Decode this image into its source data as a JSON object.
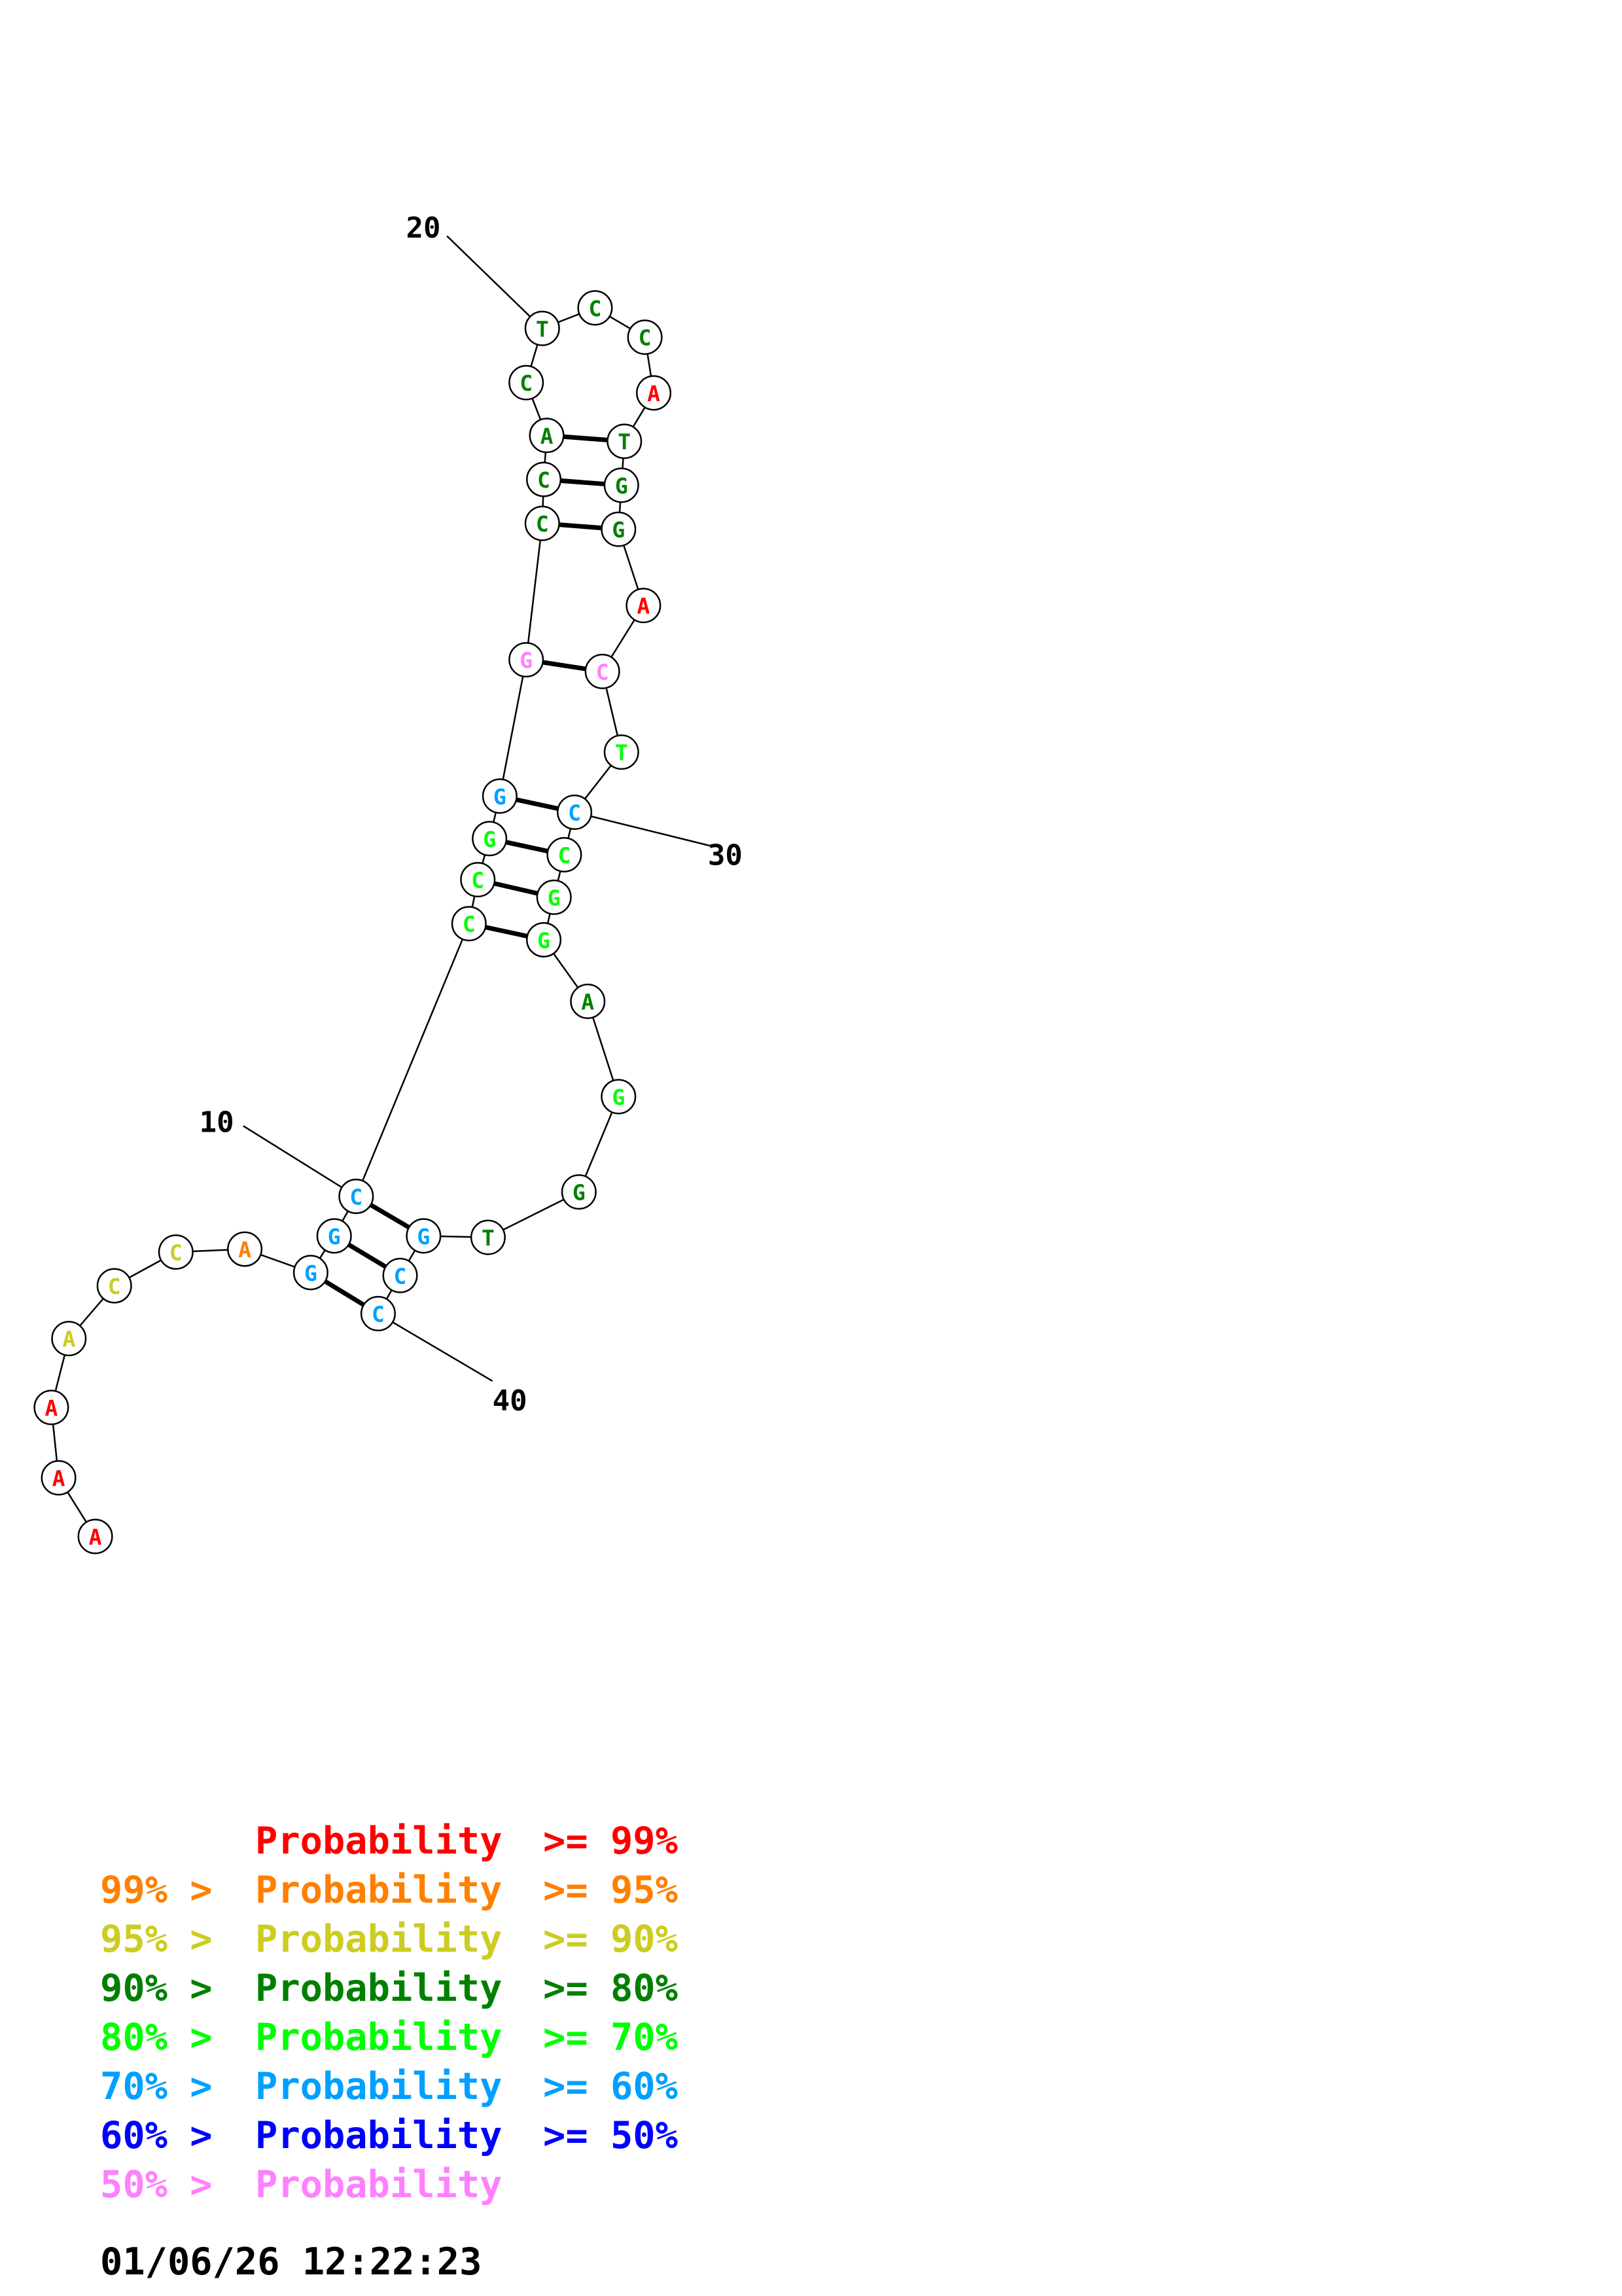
{
  "colors": {
    "red": "#ff0000",
    "orange": "#ff8000",
    "yellow": "#cccc22",
    "darkgreen": "#008000",
    "green": "#00ff00",
    "cyan": "#00a0ff",
    "blue": "#0000ff",
    "pink": "#ff80ff"
  },
  "nucleotides": [
    {
      "i": 1,
      "base": "A",
      "color": "red"
    },
    {
      "i": 2,
      "base": "A",
      "color": "red"
    },
    {
      "i": 3,
      "base": "A",
      "color": "red"
    },
    {
      "i": 4,
      "base": "A",
      "color": "yellow"
    },
    {
      "i": 5,
      "base": "C",
      "color": "yellow"
    },
    {
      "i": 6,
      "base": "C",
      "color": "yellow"
    },
    {
      "i": 7,
      "base": "A",
      "color": "orange"
    },
    {
      "i": 8,
      "base": "G",
      "color": "cyan"
    },
    {
      "i": 9,
      "base": "G",
      "color": "cyan"
    },
    {
      "i": 10,
      "base": "C",
      "color": "cyan"
    },
    {
      "i": 11,
      "base": "C",
      "color": "green"
    },
    {
      "i": 12,
      "base": "C",
      "color": "green"
    },
    {
      "i": 13,
      "base": "G",
      "color": "green"
    },
    {
      "i": 14,
      "base": "G",
      "color": "cyan"
    },
    {
      "i": 15,
      "base": "G",
      "color": "pink"
    },
    {
      "i": 16,
      "base": "C",
      "color": "darkgreen"
    },
    {
      "i": 17,
      "base": "C",
      "color": "darkgreen"
    },
    {
      "i": 18,
      "base": "A",
      "color": "darkgreen"
    },
    {
      "i": 19,
      "base": "C",
      "color": "darkgreen"
    },
    {
      "i": 20,
      "base": "T",
      "color": "darkgreen"
    },
    {
      "i": 21,
      "base": "C",
      "color": "darkgreen"
    },
    {
      "i": 22,
      "base": "C",
      "color": "darkgreen"
    },
    {
      "i": 23,
      "base": "A",
      "color": "red"
    },
    {
      "i": 24,
      "base": "T",
      "color": "darkgreen"
    },
    {
      "i": 25,
      "base": "G",
      "color": "darkgreen"
    },
    {
      "i": 26,
      "base": "G",
      "color": "darkgreen"
    },
    {
      "i": 27,
      "base": "A",
      "color": "red"
    },
    {
      "i": 28,
      "base": "C",
      "color": "pink"
    },
    {
      "i": 29,
      "base": "T",
      "color": "green"
    },
    {
      "i": 30,
      "base": "C",
      "color": "cyan"
    },
    {
      "i": 31,
      "base": "C",
      "color": "green"
    },
    {
      "i": 32,
      "base": "G",
      "color": "green"
    },
    {
      "i": 33,
      "base": "G",
      "color": "green"
    },
    {
      "i": 34,
      "base": "A",
      "color": "darkgreen"
    },
    {
      "i": 35,
      "base": "G",
      "color": "green"
    },
    {
      "i": 36,
      "base": "G",
      "color": "darkgreen"
    },
    {
      "i": 37,
      "base": "T",
      "color": "darkgreen"
    },
    {
      "i": 38,
      "base": "G",
      "color": "cyan"
    },
    {
      "i": 39,
      "base": "C",
      "color": "cyan"
    },
    {
      "i": 40,
      "base": "C",
      "color": "cyan"
    }
  ],
  "pairs": [
    [
      8,
      40
    ],
    [
      9,
      39
    ],
    [
      10,
      38
    ],
    [
      11,
      33
    ],
    [
      12,
      32
    ],
    [
      13,
      31
    ],
    [
      14,
      30
    ],
    [
      15,
      28
    ],
    [
      16,
      26
    ],
    [
      17,
      25
    ],
    [
      18,
      24
    ]
  ],
  "position_labels": [
    {
      "nt": 10,
      "text": "10"
    },
    {
      "nt": 20,
      "text": "20"
    },
    {
      "nt": 30,
      "text": "30"
    },
    {
      "nt": 40,
      "text": "40"
    }
  ],
  "legend": [
    {
      "prefix": "",
      "label": "Probability",
      "suffix": ">= 99%",
      "color": "red"
    },
    {
      "prefix": "99% >",
      "label": "Probability",
      "suffix": ">= 95%",
      "color": "orange"
    },
    {
      "prefix": "95% >",
      "label": "Probability",
      "suffix": ">= 90%",
      "color": "yellow"
    },
    {
      "prefix": "90% >",
      "label": "Probability",
      "suffix": ">= 80%",
      "color": "darkgreen"
    },
    {
      "prefix": "80% >",
      "label": "Probability",
      "suffix": ">= 70%",
      "color": "green"
    },
    {
      "prefix": "70% >",
      "label": "Probability",
      "suffix": ">= 60%",
      "color": "cyan"
    },
    {
      "prefix": "60% >",
      "label": "Probability",
      "suffix": ">= 50%",
      "color": "blue"
    },
    {
      "prefix": "50% >",
      "label": "Probability",
      "suffix": "",
      "color": "pink"
    }
  ],
  "timestamp": "01/06/26 12:22:23"
}
